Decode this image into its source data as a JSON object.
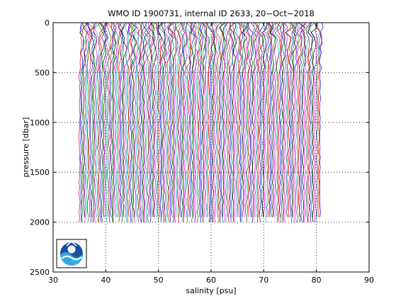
{
  "chart_data": {
    "type": "line",
    "title": "WMO ID 1900731, internal ID 2633, 20−Oct−2018",
    "xlabel": "salinity [psu]",
    "ylabel": "pressure [dbar]",
    "xlim": [
      30,
      90
    ],
    "ylim": [
      0,
      2500
    ],
    "y_reversed": true,
    "grid": true,
    "grid_style": "dotted",
    "x_ticks": [
      30,
      40,
      50,
      60,
      70,
      80,
      90
    ],
    "y_ticks": [
      0,
      500,
      1000,
      1500,
      2000,
      2500
    ],
    "profile_offset_start": 34.9,
    "profile_offset_end": 80.6,
    "profile_count": 170,
    "profile_pressure_range": [
      0,
      2000
    ],
    "series_colors": [
      "#ff0000",
      "#0000ff",
      "#008000",
      "#000000",
      "#ff00ff",
      "#00bfbf",
      "#7f3f00"
    ],
    "logo": "noaa-logo"
  }
}
